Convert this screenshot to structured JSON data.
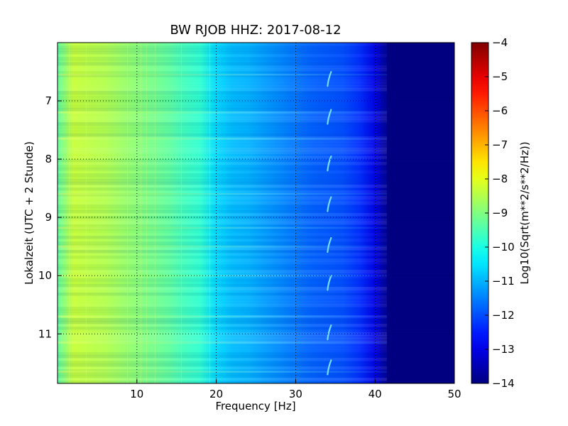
{
  "chart_data": {
    "type": "heatmap",
    "title": "BW RJOB HHZ: 2017-08-12",
    "xlabel": "Frequency [Hz]",
    "ylabel": "Lokalzeit (UTC + 2 Stunde)",
    "xlim": [
      0,
      50
    ],
    "ylim": [
      6,
      11.85
    ],
    "y_axis_inverted": true,
    "x_ticks": [
      10,
      20,
      30,
      40,
      50
    ],
    "x_tick_labels": [
      "10",
      "20",
      "30",
      "40",
      "50"
    ],
    "y_ticks": [
      7,
      8,
      9,
      10,
      11
    ],
    "y_tick_labels": [
      "7",
      "8",
      "9",
      "10",
      "11"
    ],
    "grid": true,
    "grid_style": "dotted",
    "colormap": "jet",
    "colorbar": {
      "label": "Log10(Sqrt(m**2/s**2/Hz))",
      "range": [
        -14,
        -4
      ],
      "ticks": [
        -4,
        -5,
        -6,
        -7,
        -8,
        -9,
        -10,
        -11,
        -12,
        -13,
        -14
      ],
      "tick_labels": [
        "−4",
        "−5",
        "−6",
        "−7",
        "−8",
        "−9",
        "−10",
        "−11",
        "−12",
        "−13",
        "−14"
      ]
    },
    "spectral_profile": {
      "frequency_hz": [
        0,
        2,
        4,
        6,
        8,
        10,
        12,
        14,
        16,
        18,
        20,
        22,
        24,
        26,
        28,
        30,
        32,
        34,
        36,
        38,
        40,
        41,
        42,
        44,
        46,
        48,
        50
      ],
      "log_psd": [
        -9.3,
        -8.3,
        -8.4,
        -8.5,
        -8.7,
        -8.9,
        -9.1,
        -9.3,
        -9.6,
        -9.8,
        -10.6,
        -10.9,
        -11.0,
        -11.2,
        -11.4,
        -11.6,
        -11.8,
        -11.9,
        -12.0,
        -12.3,
        -13.0,
        -13.6,
        -14.0,
        -14.0,
        -14.0,
        -14.0,
        -14.0
      ]
    },
    "bright_horizontal_bands_hour": [
      6.55,
      7.2,
      7.65,
      8.6,
      9.18,
      9.5,
      10.0,
      10.7,
      11.15,
      11.65
    ],
    "narrowband_feature": {
      "frequency_hz": 34.2,
      "time_hours": [
        6.6,
        7.25,
        8.05,
        8.75,
        9.45,
        10.1,
        10.95,
        11.55
      ]
    }
  }
}
